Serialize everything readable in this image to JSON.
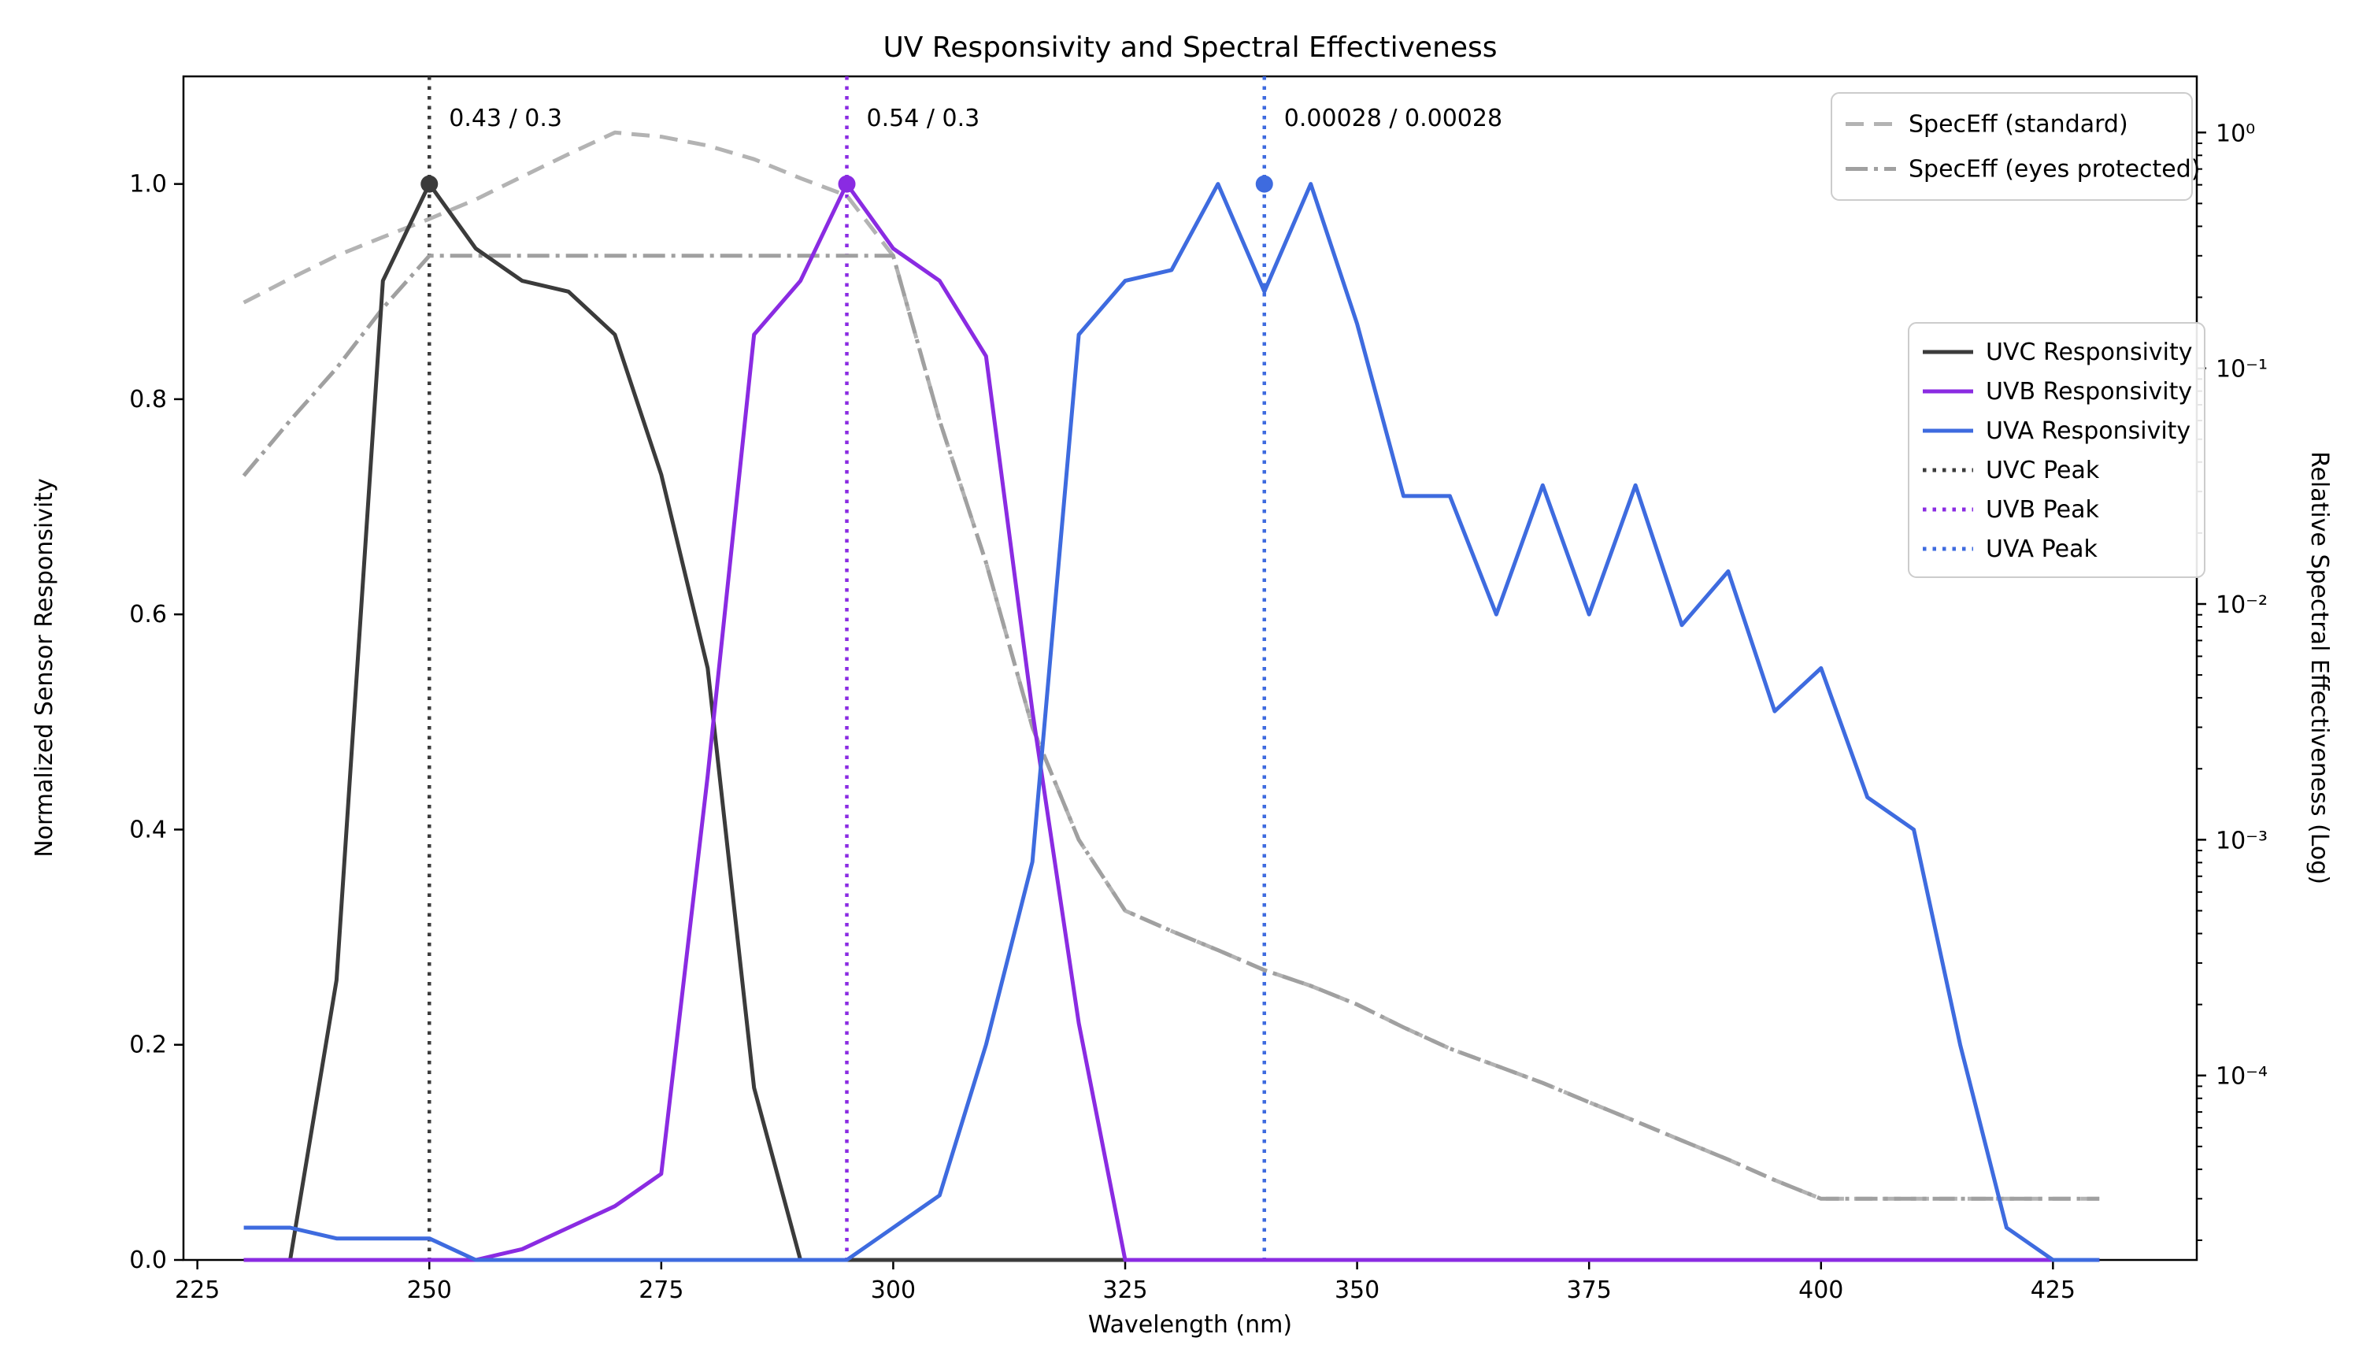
{
  "chart_data": {
    "type": "line",
    "title": "UV Responsivity and Spectral Effectiveness",
    "x_axis": {
      "label": "Wavelength (nm)",
      "lim": [
        223.5,
        440.5
      ],
      "ticks": [
        {
          "label": "225",
          "value": 225
        },
        {
          "label": "250",
          "value": 250
        },
        {
          "label": "275",
          "value": 275
        },
        {
          "label": "300",
          "value": 300
        },
        {
          "label": "325",
          "value": 325
        },
        {
          "label": "350",
          "value": 350
        },
        {
          "label": "375",
          "value": 375
        },
        {
          "label": "400",
          "value": 400
        },
        {
          "label": "425",
          "value": 425
        }
      ]
    },
    "y_axis_left": {
      "label": "Normalized Sensor Responsivity",
      "lim": [
        0,
        1.1
      ],
      "ticks": [
        {
          "label": "0.0",
          "value": 0.0
        },
        {
          "label": "0.2",
          "value": 0.2
        },
        {
          "label": "0.4",
          "value": 0.4
        },
        {
          "label": "0.6",
          "value": 0.6
        },
        {
          "label": "0.8",
          "value": 0.8
        },
        {
          "label": "1.0",
          "value": 1.0
        }
      ]
    },
    "y_axis_right": {
      "label": "Relative Spectral Effectiveness (Log)",
      "scale": "log",
      "lim": [
        1.65e-05,
        1.73
      ],
      "ticks": [
        {
          "label": "10⁰",
          "value": 1
        },
        {
          "label": "10⁻¹",
          "value": 0.1
        },
        {
          "label": "10⁻²",
          "value": 0.01
        },
        {
          "label": "10⁻³",
          "value": 0.001
        },
        {
          "label": "10⁻⁴",
          "value": 0.0001
        }
      ]
    },
    "series": [
      {
        "name": "UVC Responsivity",
        "axis": "left",
        "color": "#3B3B3B",
        "line_style": "solid",
        "points": [
          [
            230,
            0
          ],
          [
            235,
            0
          ],
          [
            240,
            0.26
          ],
          [
            245,
            0.91
          ],
          [
            250,
            1.0
          ],
          [
            255,
            0.94
          ],
          [
            260,
            0.91
          ],
          [
            265,
            0.9
          ],
          [
            270,
            0.86
          ],
          [
            275,
            0.73
          ],
          [
            280,
            0.55
          ],
          [
            285,
            0.16
          ],
          [
            290,
            0
          ],
          [
            295,
            0
          ],
          [
            300,
            0
          ],
          [
            305,
            0
          ],
          [
            310,
            0
          ],
          [
            315,
            0
          ],
          [
            320,
            0
          ],
          [
            325,
            0
          ],
          [
            330,
            0
          ],
          [
            335,
            0
          ],
          [
            340,
            0
          ],
          [
            345,
            0
          ],
          [
            350,
            0
          ],
          [
            355,
            0
          ],
          [
            360,
            0
          ],
          [
            365,
            0
          ],
          [
            370,
            0
          ],
          [
            375,
            0
          ],
          [
            380,
            0
          ],
          [
            385,
            0
          ],
          [
            390,
            0
          ],
          [
            395,
            0
          ],
          [
            400,
            0
          ],
          [
            405,
            0
          ],
          [
            410,
            0
          ],
          [
            415,
            0
          ],
          [
            420,
            0
          ],
          [
            425,
            0
          ],
          [
            430,
            0
          ]
        ]
      },
      {
        "name": "UVB Responsivity",
        "axis": "left",
        "color": "#8A2BE2",
        "line_style": "solid",
        "points": [
          [
            230,
            0
          ],
          [
            235,
            0
          ],
          [
            240,
            0
          ],
          [
            245,
            0
          ],
          [
            250,
            0
          ],
          [
            255,
            0
          ],
          [
            260,
            0.01
          ],
          [
            265,
            0.03
          ],
          [
            270,
            0.05
          ],
          [
            275,
            0.08
          ],
          [
            280,
            0.45
          ],
          [
            285,
            0.86
          ],
          [
            290,
            0.91
          ],
          [
            295,
            1.0
          ],
          [
            300,
            0.94
          ],
          [
            305,
            0.91
          ],
          [
            310,
            0.84
          ],
          [
            315,
            0.51
          ],
          [
            320,
            0.22
          ],
          [
            325,
            0
          ],
          [
            330,
            0
          ],
          [
            335,
            0
          ],
          [
            340,
            0
          ],
          [
            345,
            0
          ],
          [
            350,
            0
          ],
          [
            355,
            0
          ],
          [
            360,
            0
          ],
          [
            365,
            0
          ],
          [
            370,
            0
          ],
          [
            375,
            0
          ],
          [
            380,
            0
          ],
          [
            385,
            0
          ],
          [
            390,
            0
          ],
          [
            395,
            0
          ],
          [
            400,
            0
          ],
          [
            405,
            0
          ],
          [
            410,
            0
          ],
          [
            415,
            0
          ],
          [
            420,
            0
          ],
          [
            425,
            0
          ],
          [
            430,
            0
          ]
        ]
      },
      {
        "name": "UVA Responsivity",
        "axis": "left",
        "color": "#3E6BDF",
        "line_style": "solid",
        "points": [
          [
            230,
            0.03
          ],
          [
            235,
            0.03
          ],
          [
            240,
            0.02
          ],
          [
            245,
            0.02
          ],
          [
            250,
            0.02
          ],
          [
            255,
            0
          ],
          [
            260,
            0
          ],
          [
            265,
            0
          ],
          [
            270,
            0
          ],
          [
            275,
            0
          ],
          [
            280,
            0
          ],
          [
            285,
            0
          ],
          [
            290,
            0
          ],
          [
            295,
            0
          ],
          [
            300,
            0.03
          ],
          [
            305,
            0.06
          ],
          [
            310,
            0.2
          ],
          [
            315,
            0.37
          ],
          [
            320,
            0.86
          ],
          [
            325,
            0.91
          ],
          [
            330,
            0.92
          ],
          [
            335,
            1.0
          ],
          [
            340,
            0.9
          ],
          [
            345,
            1.0
          ],
          [
            350,
            0.87
          ],
          [
            355,
            0.71
          ],
          [
            360,
            0.71
          ],
          [
            365,
            0.6
          ],
          [
            370,
            0.72
          ],
          [
            375,
            0.6
          ],
          [
            380,
            0.72
          ],
          [
            385,
            0.59
          ],
          [
            390,
            0.64
          ],
          [
            395,
            0.51
          ],
          [
            400,
            0.55
          ],
          [
            405,
            0.43
          ],
          [
            410,
            0.4
          ],
          [
            415,
            0.2
          ],
          [
            420,
            0.03
          ],
          [
            425,
            0
          ],
          [
            430,
            0
          ]
        ]
      },
      {
        "name": "SpecEff (standard)",
        "axis": "right",
        "color": "#B3B3B3",
        "line_style": "dashed",
        "points": [
          [
            230,
            0.19
          ],
          [
            235,
            0.24
          ],
          [
            240,
            0.3
          ],
          [
            245,
            0.36
          ],
          [
            250,
            0.43
          ],
          [
            255,
            0.52
          ],
          [
            260,
            0.65
          ],
          [
            265,
            0.81
          ],
          [
            270,
            1.0
          ],
          [
            275,
            0.96
          ],
          [
            280,
            0.88
          ],
          [
            285,
            0.77
          ],
          [
            290,
            0.64
          ],
          [
            295,
            0.54
          ],
          [
            300,
            0.3
          ],
          [
            305,
            0.06
          ],
          [
            310,
            0.015
          ],
          [
            315,
            0.003
          ],
          [
            320,
            0.001
          ],
          [
            325,
            0.0005
          ],
          [
            330,
            0.00041
          ],
          [
            335,
            0.00034
          ],
          [
            340,
            0.00028
          ],
          [
            345,
            0.00024
          ],
          [
            350,
            0.0002
          ],
          [
            355,
            0.00016
          ],
          [
            360,
            0.00013
          ],
          [
            365,
            0.00011
          ],
          [
            370,
            9.3e-05
          ],
          [
            375,
            7.7e-05
          ],
          [
            380,
            6.4e-05
          ],
          [
            385,
            5.3e-05
          ],
          [
            390,
            4.4e-05
          ],
          [
            395,
            3.6e-05
          ],
          [
            400,
            3e-05
          ],
          [
            405,
            3e-05
          ],
          [
            410,
            3e-05
          ],
          [
            415,
            3e-05
          ],
          [
            420,
            3e-05
          ],
          [
            425,
            3e-05
          ],
          [
            430,
            3e-05
          ]
        ]
      },
      {
        "name": "SpecEff (eyes protected)",
        "axis": "right",
        "color": "#A0A0A0",
        "line_style": "dashdot",
        "points": [
          [
            230,
            0.035
          ],
          [
            235,
            0.06
          ],
          [
            240,
            0.1
          ],
          [
            245,
            0.18
          ],
          [
            250,
            0.3
          ],
          [
            255,
            0.3
          ],
          [
            260,
            0.3
          ],
          [
            265,
            0.3
          ],
          [
            270,
            0.3
          ],
          [
            275,
            0.3
          ],
          [
            280,
            0.3
          ],
          [
            285,
            0.3
          ],
          [
            290,
            0.3
          ],
          [
            295,
            0.3
          ],
          [
            300,
            0.3
          ],
          [
            305,
            0.06
          ],
          [
            310,
            0.015
          ],
          [
            315,
            0.003
          ],
          [
            320,
            0.001
          ],
          [
            325,
            0.0005
          ],
          [
            330,
            0.00041
          ],
          [
            335,
            0.00034
          ],
          [
            340,
            0.00028
          ],
          [
            345,
            0.00024
          ],
          [
            350,
            0.0002
          ],
          [
            355,
            0.00016
          ],
          [
            360,
            0.00013
          ],
          [
            365,
            0.00011
          ],
          [
            370,
            9.3e-05
          ],
          [
            375,
            7.7e-05
          ],
          [
            380,
            6.4e-05
          ],
          [
            385,
            5.3e-05
          ],
          [
            390,
            4.4e-05
          ],
          [
            395,
            3.6e-05
          ],
          [
            400,
            3e-05
          ],
          [
            405,
            3e-05
          ],
          [
            410,
            3e-05
          ],
          [
            415,
            3e-05
          ],
          [
            420,
            3e-05
          ],
          [
            425,
            3e-05
          ],
          [
            430,
            3e-05
          ]
        ]
      }
    ],
    "peaks": [
      {
        "name": "UVC Peak",
        "wavelength": 250,
        "marker_value": 1.0,
        "color": "#3B3B3B",
        "annotation": "0.43 / 0.3"
      },
      {
        "name": "UVB Peak",
        "wavelength": 295,
        "marker_value": 1.0,
        "color": "#8A2BE2",
        "annotation": "0.54 / 0.3"
      },
      {
        "name": "UVA Peak",
        "wavelength": 340,
        "marker_value": 1.0,
        "color": "#3E6BDF",
        "annotation": "0.00028 / 0.00028"
      }
    ],
    "legend_top_right": {
      "items": [
        {
          "label": "SpecEff (standard)",
          "line_style": "dashed",
          "color": "#B3B3B3"
        },
        {
          "label": "SpecEff (eyes protected)",
          "line_style": "dashdot",
          "color": "#A0A0A0"
        }
      ]
    },
    "legend_right": {
      "items": [
        {
          "label": "UVC Responsivity",
          "line_style": "solid",
          "color": "#3B3B3B"
        },
        {
          "label": "UVB Responsivity",
          "line_style": "solid",
          "color": "#8A2BE2"
        },
        {
          "label": "UVA Responsivity",
          "line_style": "solid",
          "color": "#3E6BDF"
        },
        {
          "label": "UVC Peak",
          "line_style": "dotted",
          "color": "#3B3B3B"
        },
        {
          "label": "UVB Peak",
          "line_style": "dotted",
          "color": "#8A2BE2"
        },
        {
          "label": "UVA Peak",
          "line_style": "dotted",
          "color": "#3E6BDF"
        }
      ]
    }
  }
}
